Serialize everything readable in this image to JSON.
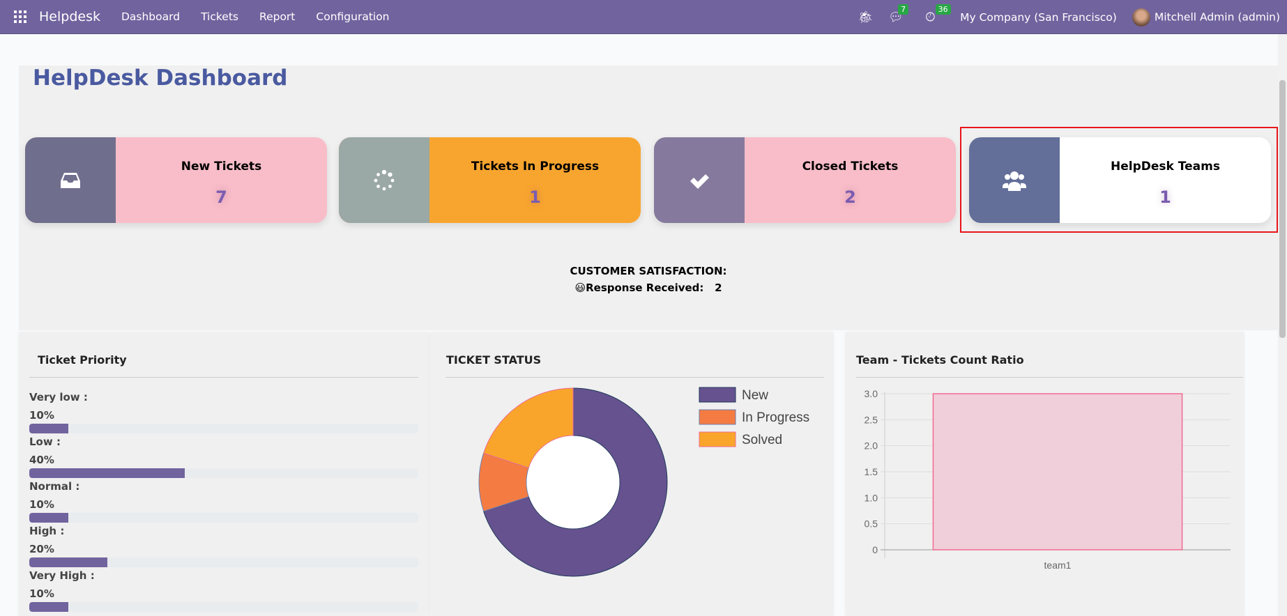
{
  "navbar": {
    "app": "Helpdesk",
    "menu": [
      "Dashboard",
      "Tickets",
      "Report",
      "Configuration"
    ],
    "messages_count": "7",
    "activities_count": "36",
    "company": "My Company (San Francisco)",
    "user": "Mitchell Admin (admin)",
    "color": "#71639e"
  },
  "title": "HelpDesk Dashboard",
  "cards": [
    {
      "label": "New Tickets",
      "value": "7",
      "icon": "inbox-icon",
      "icon_bg": "#706e8d",
      "bg": "#f8bdc8"
    },
    {
      "label": "Tickets In Progress",
      "value": "1",
      "icon": "spinner-icon",
      "icon_bg": "#9aa8a6",
      "bg": "#f8a52f"
    },
    {
      "label": "Closed Tickets",
      "value": "2",
      "icon": "check-icon",
      "icon_bg": "#857a9e",
      "bg": "#f8bdc8"
    },
    {
      "label": "HelpDesk Teams",
      "value": "1",
      "icon": "users-icon",
      "icon_bg": "#636f99",
      "bg": "#ffffff",
      "highlighted": true
    }
  ],
  "satisfaction": {
    "heading": "CUSTOMER SATISFACTION:",
    "emoji": "😃",
    "label": "Response Received:",
    "value": "2"
  },
  "priority": {
    "title": "Ticket Priority",
    "rows": [
      {
        "label": "Very low :",
        "pct": "10%",
        "value": 10
      },
      {
        "label": "Low :",
        "pct": "40%",
        "value": 40
      },
      {
        "label": "Normal :",
        "pct": "10%",
        "value": 10
      },
      {
        "label": "High :",
        "pct": "20%",
        "value": 20
      },
      {
        "label": "Very High :",
        "pct": "10%",
        "value": 10
      }
    ]
  },
  "chart_data": [
    {
      "type": "pie",
      "title": "TICKET STATUS",
      "donut": true,
      "legend": "right",
      "categories": [
        "New",
        "In Progress",
        "Solved"
      ],
      "values": [
        7,
        1,
        2
      ],
      "colors": [
        "#66528f",
        "#f47c43",
        "#f9a52b"
      ]
    },
    {
      "type": "bar",
      "title": "Team - Tickets Count Ratio",
      "categories": [
        "team1"
      ],
      "values": [
        3
      ],
      "ylim": [
        0,
        3
      ],
      "yticks": [
        "0",
        "0.5",
        "1.0",
        "1.5",
        "2.0",
        "2.5",
        "3.0"
      ],
      "grid": true,
      "color": "#f0cfda",
      "border": "#f06b93"
    }
  ]
}
